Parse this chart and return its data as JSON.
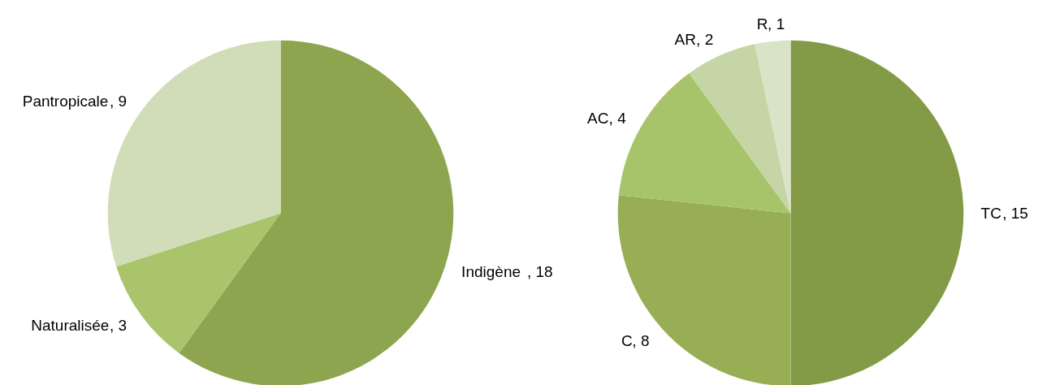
{
  "chart_data": [
    {
      "type": "pie",
      "categories": [
        "Indigène",
        "Naturalisée",
        "Pantropicale"
      ],
      "values": [
        18,
        3,
        9
      ],
      "colors": [
        "#8ea550",
        "#a9c46a",
        "#d1dcb9"
      ],
      "value_labels": [
        ", 18",
        ", 3",
        ", 9"
      ]
    },
    {
      "type": "pie",
      "categories": [
        "TC",
        "C",
        "AC",
        "AR",
        "R"
      ],
      "values": [
        15,
        8,
        4,
        2,
        1
      ],
      "colors": [
        "#839a47",
        "#97ae55",
        "#a8c46a",
        "#c6d5a6",
        "#d9e3c7"
      ],
      "value_labels": [
        ", 15",
        ", 8",
        ", 4",
        ", 2",
        ", 1"
      ]
    }
  ]
}
